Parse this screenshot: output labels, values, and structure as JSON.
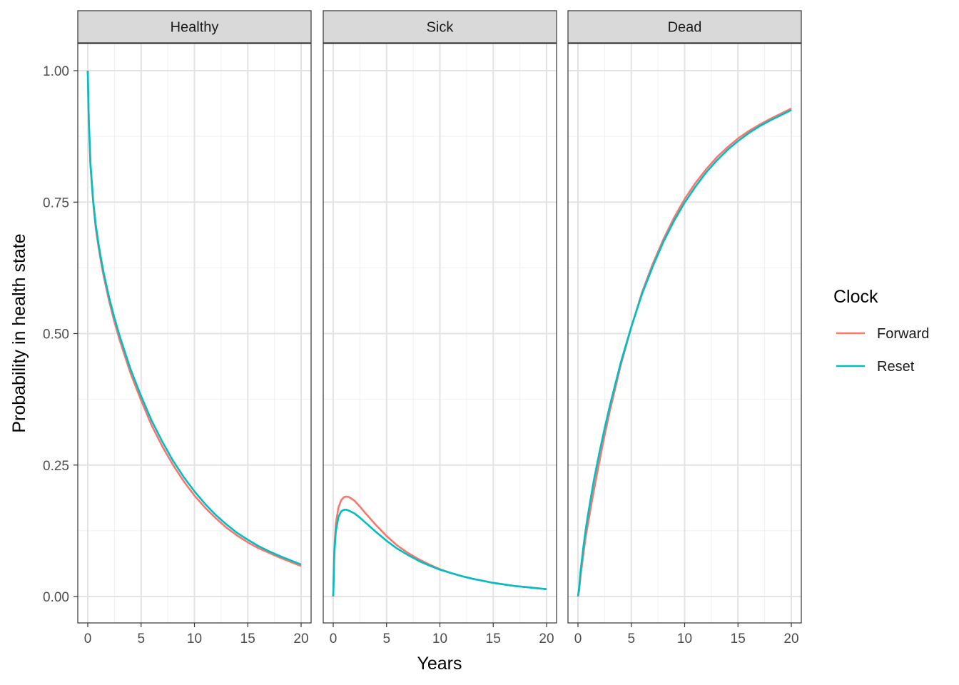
{
  "chart_data": {
    "type": "line",
    "xlabel": "Years",
    "ylabel": "Probability in health state",
    "xlim": [
      0,
      20
    ],
    "ylim": [
      0,
      1
    ],
    "x_ticks": [
      0,
      5,
      10,
      15,
      20
    ],
    "y_ticks": [
      0,
      0.25,
      0.5,
      0.75,
      1
    ],
    "y_tick_labels": [
      "0.00",
      "0.25",
      "0.50",
      "0.75",
      "1.00"
    ],
    "grid": true,
    "legend": {
      "title": "Clock",
      "placement": "right",
      "entries": [
        {
          "name": "Forward",
          "color": "#F8766D"
        },
        {
          "name": "Reset",
          "color": "#00BFC4"
        }
      ]
    },
    "x": [
      0,
      0.1,
      0.25,
      0.5,
      0.75,
      1,
      1.25,
      1.5,
      2,
      2.5,
      3,
      4,
      5,
      6,
      7,
      8,
      9,
      10,
      11,
      12,
      13,
      14,
      15,
      16,
      17,
      18,
      19,
      20
    ],
    "panels": [
      {
        "label": "Healthy",
        "series": [
          {
            "name": "Forward",
            "values": [
              1.0,
              0.9,
              0.82,
              0.75,
              0.7,
              0.666,
              0.635,
              0.608,
              0.562,
              0.522,
              0.487,
              0.425,
              0.373,
              0.325,
              0.285,
              0.25,
              0.219,
              0.192,
              0.169,
              0.149,
              0.131,
              0.116,
              0.103,
              0.092,
              0.083,
              0.074,
              0.066,
              0.058
            ]
          },
          {
            "name": "Reset",
            "values": [
              1.0,
              0.905,
              0.825,
              0.755,
              0.707,
              0.672,
              0.642,
              0.615,
              0.569,
              0.53,
              0.495,
              0.433,
              0.381,
              0.334,
              0.294,
              0.258,
              0.227,
              0.2,
              0.176,
              0.155,
              0.137,
              0.121,
              0.108,
              0.096,
              0.086,
              0.077,
              0.069,
              0.061
            ]
          }
        ]
      },
      {
        "label": "Sick",
        "series": [
          {
            "name": "Forward",
            "values": [
              0.0,
              0.09,
              0.14,
              0.17,
              0.183,
              0.189,
              0.19,
              0.189,
              0.182,
              0.171,
              0.159,
              0.136,
              0.115,
              0.097,
              0.083,
              0.071,
              0.061,
              0.052,
              0.045,
              0.039,
              0.034,
              0.03,
              0.026,
              0.023,
              0.02,
              0.018,
              0.016,
              0.014
            ]
          },
          {
            "name": "Reset",
            "values": [
              0.0,
              0.08,
              0.125,
              0.152,
              0.162,
              0.165,
              0.165,
              0.163,
              0.158,
              0.15,
              0.141,
              0.123,
              0.106,
              0.091,
              0.079,
              0.068,
              0.059,
              0.051,
              0.045,
              0.039,
              0.034,
              0.03,
              0.026,
              0.023,
              0.02,
              0.018,
              0.016,
              0.014
            ]
          }
        ]
      },
      {
        "label": "Dead",
        "series": [
          {
            "name": "Forward",
            "values": [
              0.0,
              0.01,
              0.04,
              0.08,
              0.117,
              0.145,
              0.175,
              0.203,
              0.256,
              0.307,
              0.354,
              0.439,
              0.512,
              0.578,
              0.632,
              0.679,
              0.72,
              0.756,
              0.786,
              0.812,
              0.835,
              0.854,
              0.871,
              0.885,
              0.897,
              0.908,
              0.918,
              0.928
            ]
          },
          {
            "name": "Reset",
            "values": [
              0.0,
              0.015,
              0.05,
              0.093,
              0.131,
              0.163,
              0.193,
              0.222,
              0.273,
              0.32,
              0.364,
              0.444,
              0.513,
              0.575,
              0.627,
              0.674,
              0.714,
              0.749,
              0.779,
              0.806,
              0.829,
              0.849,
              0.866,
              0.881,
              0.894,
              0.905,
              0.915,
              0.925
            ]
          }
        ]
      }
    ]
  }
}
